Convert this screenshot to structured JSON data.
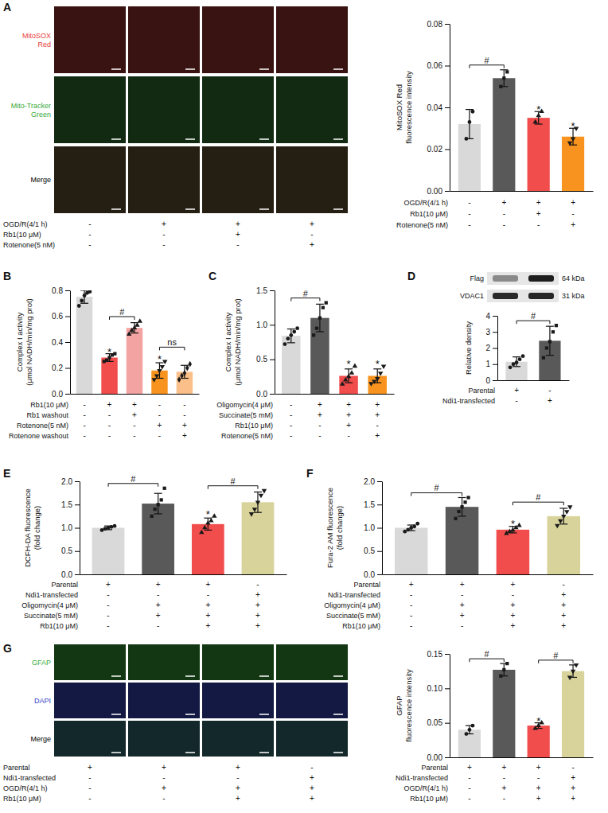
{
  "chart_data": [
    {
      "type": "bar",
      "panel": "A",
      "y_label": [
        "MitoSOX Red",
        "fluorescence intensity"
      ],
      "categories": [
        null,
        null,
        null,
        null
      ],
      "values": [
        0.032,
        0.054,
        0.035,
        0.026
      ],
      "errors": [
        0.007,
        0.004,
        0.003,
        0.004
      ],
      "points": [
        [
          0.025,
          0.033,
          0.038
        ],
        [
          0.05,
          0.054,
          0.057
        ],
        [
          0.033,
          0.036,
          0.038
        ],
        [
          0.023,
          0.025,
          0.03
        ]
      ],
      "colors": [
        "#d9d9d9",
        "#595959",
        "#f24d4d",
        "#f7931e"
      ],
      "ylim": [
        0,
        0.08
      ],
      "yticks": [
        {
          "value": 0,
          "label": "0.00"
        },
        {
          "value": 0.02,
          "label": "0.02"
        },
        {
          "value": 0.04,
          "label": "0.04"
        },
        {
          "value": 0.06,
          "label": "0.06"
        },
        {
          "value": 0.08,
          "label": "0.08"
        }
      ],
      "conditions": [
        {
          "label": "OGD/R(4/1 h)",
          "marks": [
            "-",
            "+",
            "+",
            "+"
          ]
        },
        {
          "label": "Rb1(10 μM)",
          "marks": [
            "-",
            "-",
            "+",
            "-"
          ]
        },
        {
          "label": "Rotenone(5 nM)",
          "marks": [
            "-",
            "-",
            "-",
            "+"
          ]
        }
      ],
      "annotations": [
        {
          "text": "#",
          "from": 0,
          "to": 1
        },
        {
          "text": "*",
          "at": 2
        },
        {
          "text": "*",
          "at": 3
        }
      ]
    },
    {
      "type": "bar",
      "panel": "B",
      "y_label": [
        "Complex I activity",
        "(μmol NADH/min/mg prot)"
      ],
      "categories": [
        null,
        null,
        null,
        null,
        null
      ],
      "values": [
        0.75,
        0.28,
        0.51,
        0.18,
        0.17
      ],
      "errors": [
        0.05,
        0.03,
        0.04,
        0.06,
        0.05
      ],
      "points": [
        [
          0.68,
          0.72,
          0.76,
          0.78,
          0.79
        ],
        [
          0.25,
          0.26,
          0.28,
          0.3,
          0.31
        ],
        [
          0.46,
          0.49,
          0.51,
          0.53,
          0.56
        ],
        [
          0.11,
          0.14,
          0.18,
          0.21,
          0.25
        ],
        [
          0.11,
          0.14,
          0.16,
          0.2,
          0.23
        ]
      ],
      "colors": [
        "#d9d9d9",
        "#f24d4d",
        "#f4a3a3",
        "#f7931e",
        "#fbc08a"
      ],
      "ylim": [
        0,
        0.8
      ],
      "yticks": [
        {
          "value": 0,
          "label": "0.0"
        },
        {
          "value": 0.2,
          "label": "0.2"
        },
        {
          "value": 0.4,
          "label": "0.4"
        },
        {
          "value": 0.6,
          "label": "0.6"
        },
        {
          "value": 0.8,
          "label": "0.8"
        }
      ],
      "conditions": [
        {
          "label": "Rb1(10 μM)",
          "marks": [
            "-",
            "+",
            "+",
            "-",
            "-"
          ]
        },
        {
          "label": "Rb1 washout",
          "marks": [
            "-",
            "-",
            "+",
            "-",
            "-"
          ]
        },
        {
          "label": "Rotenone(5 nM)",
          "marks": [
            "-",
            "-",
            "-",
            "+",
            "+"
          ]
        },
        {
          "label": "Rotenone washout",
          "marks": [
            "-",
            "-",
            "-",
            "-",
            "+"
          ]
        }
      ],
      "annotations": [
        {
          "text": "*",
          "at": 1
        },
        {
          "text": "#",
          "from": 1,
          "to": 2
        },
        {
          "text": "*",
          "at": 3
        },
        {
          "text": "ns",
          "from": 3,
          "to": 4
        }
      ]
    },
    {
      "type": "bar",
      "panel": "C",
      "y_label": [
        "Complex I activity",
        "(μmol NADH/min/mg prot)"
      ],
      "categories": [
        null,
        null,
        null,
        null
      ],
      "values": [
        0.84,
        1.1,
        0.26,
        0.26
      ],
      "errors": [
        0.1,
        0.2,
        0.1,
        0.1
      ],
      "points": [
        [
          0.72,
          0.8,
          0.85,
          0.9,
          0.95
        ],
        [
          0.85,
          0.95,
          1.1,
          1.25,
          1.32
        ],
        [
          0.14,
          0.2,
          0.25,
          0.3,
          0.4
        ],
        [
          0.15,
          0.18,
          0.22,
          0.3,
          0.4
        ]
      ],
      "colors": [
        "#d9d9d9",
        "#595959",
        "#f24d4d",
        "#f7931e"
      ],
      "ylim": [
        0,
        1.5
      ],
      "yticks": [
        {
          "value": 0,
          "label": "0.0"
        },
        {
          "value": 0.5,
          "label": "0.5"
        },
        {
          "value": 1,
          "label": "1.0"
        },
        {
          "value": 1.5,
          "label": "1.5"
        }
      ],
      "conditions": [
        {
          "label": "Oligomycin(4 μM)",
          "marks": [
            "-",
            "+",
            "+",
            "+"
          ]
        },
        {
          "label": "Succinate(5 mM)",
          "marks": [
            "-",
            "+",
            "+",
            "+"
          ]
        },
        {
          "label": "Rb1(10 μM)",
          "marks": [
            "-",
            "-",
            "+",
            "-"
          ]
        },
        {
          "label": "Rotenone(5 nM)",
          "marks": [
            "-",
            "-",
            "-",
            "+"
          ]
        }
      ],
      "annotations": [
        {
          "text": "#",
          "from": 0,
          "to": 1
        },
        {
          "text": "*",
          "at": 2
        },
        {
          "text": "*",
          "at": 3
        }
      ]
    },
    {
      "type": "bar",
      "panel": "D",
      "y_label": [
        "Relative density"
      ],
      "categories": [
        null,
        null
      ],
      "values": [
        1.15,
        2.45
      ],
      "errors": [
        0.3,
        0.9
      ],
      "points": [
        [
          0.8,
          1.0,
          1.1,
          1.3,
          1.5
        ],
        [
          1.4,
          2.0,
          2.4,
          3.0,
          3.4
        ]
      ],
      "colors": [
        "#d9d9d9",
        "#595959"
      ],
      "ylim": [
        0,
        4
      ],
      "yticks": [
        0,
        1,
        2,
        3,
        4
      ],
      "conditions": [
        {
          "label": "Parental",
          "marks": [
            "+",
            "-"
          ]
        },
        {
          "label": "Ndi1-transfected",
          "marks": [
            "-",
            "+"
          ]
        }
      ],
      "annotations": [
        {
          "text": "#",
          "from": 0,
          "to": 1
        }
      ]
    },
    {
      "type": "bar",
      "panel": "E",
      "y_label": [
        "DCFH-DA fluorescence",
        "(fold change)"
      ],
      "categories": [
        null,
        null,
        null,
        null
      ],
      "values": [
        1.0,
        1.52,
        1.08,
        1.55
      ],
      "errors": [
        0.04,
        0.22,
        0.13,
        0.22
      ],
      "points": [
        [
          0.95,
          0.98,
          1.0,
          1.02,
          1.04
        ],
        [
          1.25,
          1.4,
          1.5,
          1.6,
          1.85
        ],
        [
          0.9,
          1.0,
          1.1,
          1.15,
          1.25
        ],
        [
          1.3,
          1.4,
          1.55,
          1.7,
          1.8
        ]
      ],
      "colors": [
        "#d9d9d9",
        "#595959",
        "#f24d4d",
        "#d8d39b"
      ],
      "ylim": [
        0,
        2
      ],
      "yticks": [
        {
          "value": 0,
          "label": "0.0"
        },
        {
          "value": 0.5,
          "label": "0.5"
        },
        {
          "value": 1,
          "label": "1.0"
        },
        {
          "value": 1.5,
          "label": "1.5"
        },
        {
          "value": 2,
          "label": "2.0"
        }
      ],
      "conditions": [
        {
          "label": "Parental",
          "marks": [
            "+",
            "+",
            "+",
            "-"
          ]
        },
        {
          "label": "Ndi1-transfected",
          "marks": [
            "-",
            "-",
            "-",
            "+"
          ]
        },
        {
          "label": "Oligomycin(4 μM)",
          "marks": [
            "-",
            "+",
            "+",
            "+"
          ]
        },
        {
          "label": "Succinate(5 mM)",
          "marks": [
            "-",
            "+",
            "+",
            "+"
          ]
        },
        {
          "label": "Rb1(10 μM)",
          "marks": [
            "-",
            "-",
            "+",
            "+"
          ]
        }
      ],
      "annotations": [
        {
          "text": "#",
          "from": 0,
          "to": 1
        },
        {
          "text": "#",
          "from": 2,
          "to": 3
        },
        {
          "text": "*",
          "at": 2
        }
      ]
    },
    {
      "type": "bar",
      "panel": "F",
      "y_label": [
        "Fura-2 AM fluorescence",
        "(fold change)"
      ],
      "categories": [
        null,
        null,
        null,
        null
      ],
      "values": [
        1.0,
        1.45,
        0.96,
        1.25
      ],
      "errors": [
        0.06,
        0.2,
        0.07,
        0.17
      ],
      "points": [
        [
          0.92,
          0.96,
          1.0,
          1.03,
          1.09
        ],
        [
          1.2,
          1.35,
          1.45,
          1.55,
          1.65
        ],
        [
          0.88,
          0.92,
          0.95,
          1.0,
          1.05
        ],
        [
          1.05,
          1.15,
          1.25,
          1.35,
          1.45
        ]
      ],
      "colors": [
        "#d9d9d9",
        "#595959",
        "#f24d4d",
        "#d8d39b"
      ],
      "ylim": [
        0,
        2
      ],
      "yticks": [
        {
          "value": 0,
          "label": "0.0"
        },
        {
          "value": 0.5,
          "label": "0.5"
        },
        {
          "value": 1,
          "label": "1.0"
        },
        {
          "value": 1.5,
          "label": "1.5"
        },
        {
          "value": 2,
          "label": "2.0"
        }
      ],
      "conditions": [
        {
          "label": "Parental",
          "marks": [
            "+",
            "+",
            "+",
            "-"
          ]
        },
        {
          "label": "Ndi1-transfected",
          "marks": [
            "-",
            "-",
            "-",
            "+"
          ]
        },
        {
          "label": "Oligomycin(4 μM)",
          "marks": [
            "-",
            "+",
            "+",
            "+"
          ]
        },
        {
          "label": "Succinate(5 mM)",
          "marks": [
            "-",
            "+",
            "+",
            "+"
          ]
        },
        {
          "label": "Rb1(10 μM)",
          "marks": [
            "-",
            "-",
            "+",
            "+"
          ]
        }
      ],
      "annotations": [
        {
          "text": "#",
          "from": 0,
          "to": 1
        },
        {
          "text": "#",
          "from": 2,
          "to": 3
        },
        {
          "text": "*",
          "at": 2
        }
      ]
    },
    {
      "type": "bar",
      "panel": "G",
      "y_label": [
        "GFAP",
        "fluorescence intensity"
      ],
      "categories": [
        null,
        null,
        null,
        null
      ],
      "values": [
        0.04,
        0.127,
        0.046,
        0.125
      ],
      "errors": [
        0.006,
        0.009,
        0.004,
        0.009
      ],
      "points": [
        [
          0.034,
          0.04,
          0.046
        ],
        [
          0.118,
          0.127,
          0.136
        ],
        [
          0.042,
          0.046,
          0.05
        ],
        [
          0.116,
          0.125,
          0.134
        ]
      ],
      "colors": [
        "#d9d9d9",
        "#595959",
        "#f24d4d",
        "#d8d39b"
      ],
      "ylim": [
        0,
        0.15
      ],
      "yticks": [
        {
          "value": 0,
          "label": "0.00"
        },
        {
          "value": 0.05,
          "label": "0.05"
        },
        {
          "value": 0.1,
          "label": "0.10"
        },
        {
          "value": 0.15,
          "label": "0.15"
        }
      ],
      "conditions": [
        {
          "label": "Parental",
          "marks": [
            "+",
            "+",
            "+",
            "-"
          ]
        },
        {
          "label": "Ndi1-transfected",
          "marks": [
            "-",
            "-",
            "-",
            "+"
          ]
        },
        {
          "label": "OGD/R(4/1 h)",
          "marks": [
            "-",
            "+",
            "+",
            "+"
          ]
        },
        {
          "label": "Rb1(10 μM)",
          "marks": [
            "-",
            "-",
            "+",
            "+"
          ]
        }
      ],
      "annotations": [
        {
          "text": "#",
          "from": 0,
          "to": 1
        },
        {
          "text": "#",
          "from": 2,
          "to": 3
        },
        {
          "text": "*",
          "at": 2
        }
      ]
    }
  ],
  "images": {
    "A": {
      "rows": [
        {
          "label": [
            "MitoSOX",
            "Red"
          ],
          "color": "#e8403a"
        },
        {
          "label": [
            "Mito-Tracker",
            "Green"
          ],
          "color": "#3aa83a"
        },
        {
          "label": [
            "Merge"
          ],
          "color": "#000000"
        }
      ],
      "conditions": [
        {
          "label": "OGD/R(4/1 h)",
          "marks": [
            "-",
            "+",
            "+",
            "+"
          ]
        },
        {
          "label": "Rb1(10 μM)",
          "marks": [
            "-",
            "-",
            "+",
            "-"
          ]
        },
        {
          "label": "Rotenone(5 nM)",
          "marks": [
            "-",
            "-",
            "-",
            "+"
          ]
        }
      ]
    },
    "D": {
      "bands": [
        {
          "label": "Flag",
          "size": "64 kDa"
        },
        {
          "label": "VDAC1",
          "size": "31 kDa"
        }
      ]
    },
    "G": {
      "rows": [
        {
          "label": [
            "GFAP"
          ],
          "color": "#33aa33"
        },
        {
          "label": [
            "DAPI"
          ],
          "color": "#3344cc"
        },
        {
          "label": [
            "Merge"
          ],
          "color": "#000000"
        }
      ],
      "conditions": [
        {
          "label": "Parental",
          "marks": [
            "+",
            "+",
            "+",
            "-"
          ]
        },
        {
          "label": "Ndi1-transfected",
          "marks": [
            "-",
            "-",
            "-",
            "+"
          ]
        },
        {
          "label": "OGD/R(4/1 h)",
          "marks": [
            "-",
            "+",
            "+",
            "+"
          ]
        },
        {
          "label": "Rb1(10 μM)",
          "marks": [
            "-",
            "-",
            "+",
            "+"
          ]
        }
      ]
    }
  }
}
